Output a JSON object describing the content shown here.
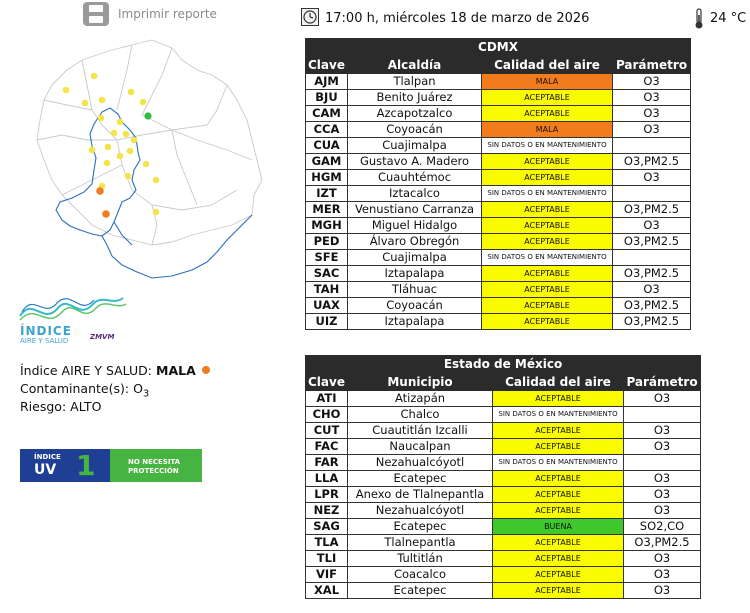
{
  "print": {
    "label": "Imprimir reporte",
    "icon": "printer-icon"
  },
  "header": {
    "datetime": "17:00 h, miércoles 18 de marzo de 2026",
    "temperature": "24 °C",
    "clock_icon": "clock-icon",
    "thermometer_icon": "thermometer-icon"
  },
  "logo": {
    "title": "ÍNDICE",
    "subtitle": "AIRE Y SALUD",
    "tag": "ZMVM"
  },
  "index": {
    "label": "Índice AIRE Y SALUD:",
    "value": "MALA",
    "pollutant_label": "Contaminante(s):",
    "pollutant": "O",
    "pollutant_sub": "3",
    "risk_label": "Riesgo:",
    "risk": "ALTO",
    "status_color": "#f07c1f"
  },
  "uv": {
    "title": "ÍNDICE",
    "label": "UV",
    "value": "1",
    "message_line1": "NO NECESITA",
    "message_line2": "PROTECCIÓN"
  },
  "colors": {
    "mala": "#f27c1c",
    "aceptable": "#fbfb00",
    "buena": "#3ec82b",
    "header": "#2b2b2b"
  },
  "cdmx": {
    "title": "CDMX",
    "headers": [
      "Clave",
      "Alcaldía",
      "Calidad del aire",
      "Parámetro"
    ],
    "rows": [
      {
        "clave": "AJM",
        "name": "Tlalpan",
        "quality": "MALA",
        "param": "O3"
      },
      {
        "clave": "BJU",
        "name": "Benito Juárez",
        "quality": "ACEPTABLE",
        "param": "O3"
      },
      {
        "clave": "CAM",
        "name": "Azcapotzalco",
        "quality": "ACEPTABLE",
        "param": "O3"
      },
      {
        "clave": "CCA",
        "name": "Coyoacán",
        "quality": "MALA",
        "param": "O3"
      },
      {
        "clave": "CUA",
        "name": "Cuajimalpa",
        "quality": "SIN DATOS O EN MANTENIMIENTO",
        "param": ""
      },
      {
        "clave": "GAM",
        "name": "Gustavo A. Madero",
        "quality": "ACEPTABLE",
        "param": "O3,PM2.5"
      },
      {
        "clave": "HGM",
        "name": "Cuauhtémoc",
        "quality": "ACEPTABLE",
        "param": "O3"
      },
      {
        "clave": "IZT",
        "name": "Iztacalco",
        "quality": "SIN DATOS O EN MANTENIMIENTO",
        "param": ""
      },
      {
        "clave": "MER",
        "name": "Venustiano Carranza",
        "quality": "ACEPTABLE",
        "param": "O3,PM2.5"
      },
      {
        "clave": "MGH",
        "name": "Miguel Hidalgo",
        "quality": "ACEPTABLE",
        "param": "O3"
      },
      {
        "clave": "PED",
        "name": "Álvaro Obregón",
        "quality": "ACEPTABLE",
        "param": "O3,PM2.5"
      },
      {
        "clave": "SFE",
        "name": "Cuajimalpa",
        "quality": "SIN DATOS O EN MANTENIMIENTO",
        "param": ""
      },
      {
        "clave": "SAC",
        "name": "Iztapalapa",
        "quality": "ACEPTABLE",
        "param": "O3,PM2.5"
      },
      {
        "clave": "TAH",
        "name": "Tláhuac",
        "quality": "ACEPTABLE",
        "param": "O3"
      },
      {
        "clave": "UAX",
        "name": "Coyoacán",
        "quality": "ACEPTABLE",
        "param": "O3,PM2.5"
      },
      {
        "clave": "UIZ",
        "name": "Iztapalapa",
        "quality": "ACEPTABLE",
        "param": "O3,PM2.5"
      }
    ]
  },
  "edomex": {
    "title": "Estado de México",
    "headers": [
      "Clave",
      "Municipio",
      "Calidad del aire",
      "Parámetro"
    ],
    "rows": [
      {
        "clave": "ATI",
        "name": "Atizapán",
        "quality": "ACEPTABLE",
        "param": "O3"
      },
      {
        "clave": "CHO",
        "name": "Chalco",
        "quality": "SIN DATOS O EN MANTENIMIENTO",
        "param": ""
      },
      {
        "clave": "CUT",
        "name": "Cuautitlán Izcalli",
        "quality": "ACEPTABLE",
        "param": "O3"
      },
      {
        "clave": "FAC",
        "name": "Naucalpan",
        "quality": "ACEPTABLE",
        "param": "O3"
      },
      {
        "clave": "FAR",
        "name": "Nezahualcóyotl",
        "quality": "SIN DATOS O EN MANTENIMIENTO",
        "param": ""
      },
      {
        "clave": "LLA",
        "name": "Ecatepec",
        "quality": "ACEPTABLE",
        "param": "O3"
      },
      {
        "clave": "LPR",
        "name": "Anexo de Tlalnepantla",
        "quality": "ACEPTABLE",
        "param": "O3"
      },
      {
        "clave": "NEZ",
        "name": "Nezahualcóyotl",
        "quality": "ACEPTABLE",
        "param": "O3"
      },
      {
        "clave": "SAG",
        "name": "Ecatepec",
        "quality": "BUENA",
        "param": "SO2,CO"
      },
      {
        "clave": "TLA",
        "name": "Tlalnepantla",
        "quality": "ACEPTABLE",
        "param": "O3,PM2.5"
      },
      {
        "clave": "TLI",
        "name": "Tultitlán",
        "quality": "ACEPTABLE",
        "param": "O3"
      },
      {
        "clave": "VIF",
        "name": "Coacalco",
        "quality": "ACEPTABLE",
        "param": "O3"
      },
      {
        "clave": "XAL",
        "name": "Ecatepec",
        "quality": "ACEPTABLE",
        "param": "O3"
      }
    ]
  },
  "map": {
    "icon": "station-map",
    "stations": [
      {
        "status": "ACEPTABLE"
      },
      {
        "status": "ACEPTABLE"
      },
      {
        "status": "ACEPTABLE"
      },
      {
        "status": "ACEPTABLE"
      },
      {
        "status": "ACEPTABLE"
      },
      {
        "status": "ACEPTABLE"
      },
      {
        "status": "ACEPTABLE"
      },
      {
        "status": "BUENA"
      },
      {
        "status": "ACEPTABLE"
      },
      {
        "status": "ACEPTABLE"
      },
      {
        "status": "ACEPTABLE"
      },
      {
        "status": "ACEPTABLE"
      },
      {
        "status": "ACEPTABLE"
      },
      {
        "status": "ACEPTABLE"
      },
      {
        "status": "ACEPTABLE"
      },
      {
        "status": "ACEPTABLE"
      },
      {
        "status": "ACEPTABLE"
      },
      {
        "status": "ACEPTABLE"
      },
      {
        "status": "ACEPTABLE"
      },
      {
        "status": "ACEPTABLE"
      },
      {
        "status": "MALA"
      },
      {
        "status": "ACEPTABLE"
      },
      {
        "status": "MALA"
      },
      {
        "status": "ACEPTABLE"
      }
    ]
  }
}
